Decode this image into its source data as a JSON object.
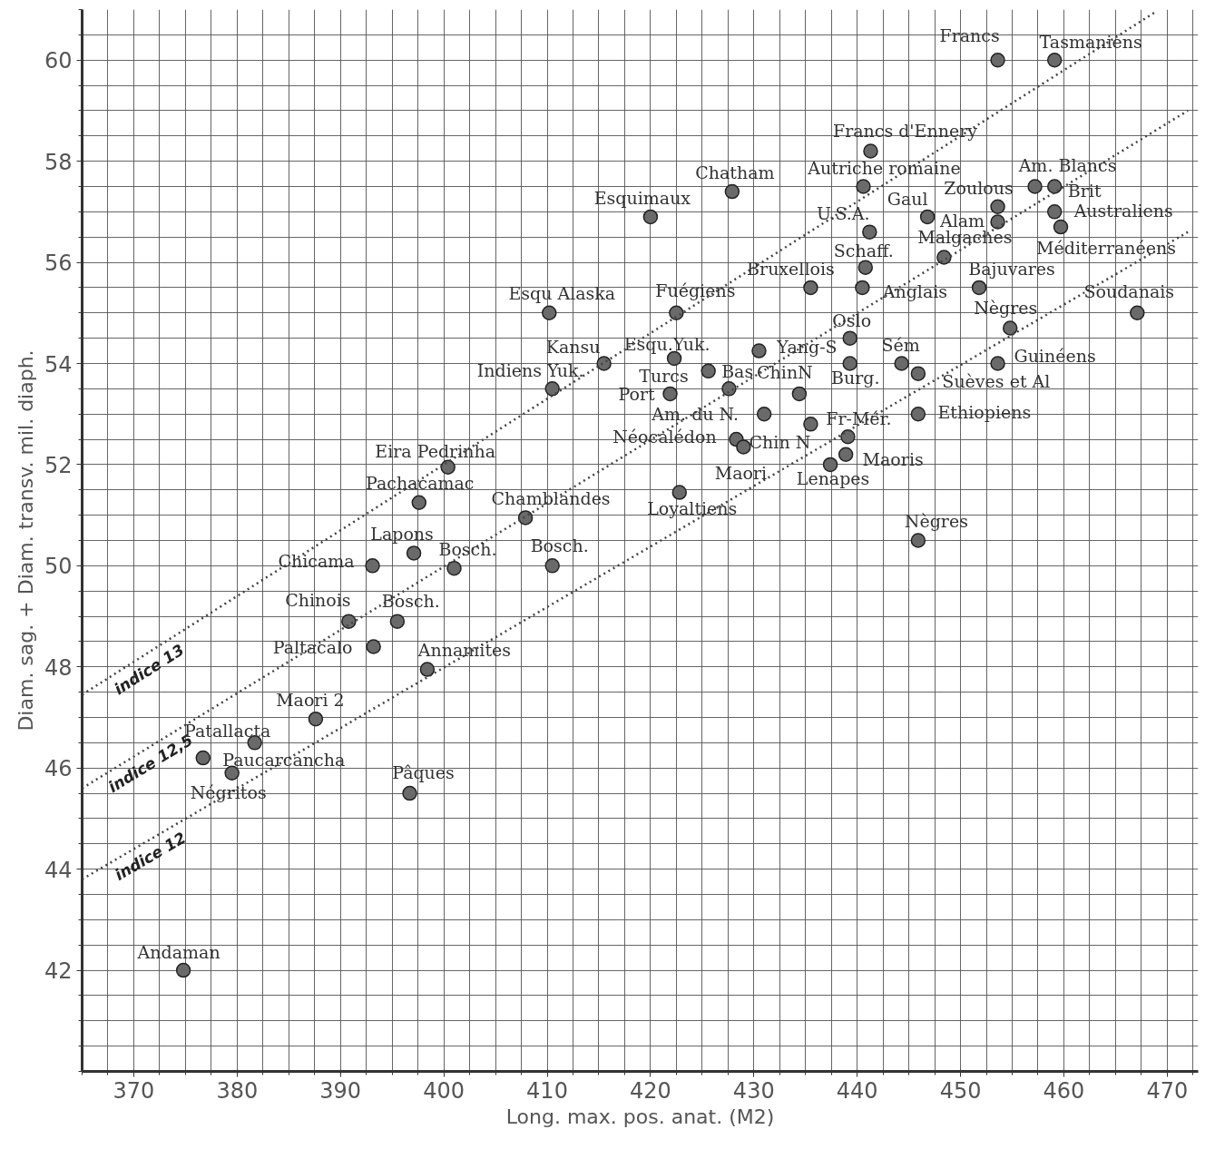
{
  "chart_data": {
    "type": "scatter",
    "xlabel": "Long. max. pos. anat. (M2)",
    "ylabel": "Diam. sag. + Diam. transv. mil. diaph.",
    "xlim": [
      365,
      473
    ],
    "ylim": [
      40,
      61
    ],
    "xticks": [
      370,
      380,
      390,
      400,
      410,
      420,
      430,
      440,
      450,
      460,
      470
    ],
    "yticks": [
      42,
      44,
      46,
      48,
      50,
      52,
      54,
      56,
      58,
      60
    ],
    "grid": true,
    "legend": false,
    "series": [
      {
        "marker": "circle",
        "color": "#6a6a6a",
        "x": [
          453.6,
          459.1,
          441.3,
          427.9,
          440.6,
          420.0,
          457.2,
          459.1,
          453.6,
          459.1,
          453.6,
          446.8,
          441.2,
          459.7,
          448.4,
          440.8,
          435.5,
          440.5,
          451.8,
          410.2,
          422.5,
          467.1,
          454.8,
          439.3,
          430.5,
          415.5,
          422.3,
          444.3,
          439.3,
          453.6,
          425.6,
          445.9,
          410.5,
          421.9,
          427.6,
          434.4,
          431.0,
          445.9,
          439.1,
          428.3,
          435.5,
          429.0,
          438.9,
          437.4,
          400.4,
          397.6,
          422.8,
          407.9,
          445.9,
          397.1,
          393.1,
          401.0,
          410.5,
          390.8,
          395.5,
          393.2,
          398.4,
          387.6,
          381.7,
          376.7,
          379.5,
          396.7,
          374.8
        ],
        "values": [
          60.0,
          60.0,
          58.2,
          57.4,
          57.5,
          56.9,
          57.5,
          57.5,
          57.1,
          57.0,
          56.8,
          56.9,
          56.6,
          56.7,
          56.1,
          55.9,
          55.5,
          55.5,
          55.5,
          55.0,
          55.0,
          55.0,
          54.7,
          54.5,
          54.25,
          54.0,
          54.1,
          54.0,
          54.0,
          54.0,
          53.85,
          53.8,
          53.5,
          53.4,
          53.5,
          53.4,
          53.0,
          53.0,
          52.55,
          52.5,
          52.8,
          52.35,
          52.2,
          52.0,
          51.95,
          51.25,
          51.45,
          50.95,
          50.5,
          50.25,
          50.0,
          49.95,
          50.0,
          48.9,
          48.9,
          48.4,
          47.95,
          46.97,
          46.5,
          46.2,
          45.9,
          45.5,
          42.0
        ]
      },
      {
        "type": "line",
        "name": "indice 13",
        "color": "#444444",
        "line_style": "dotted",
        "x": [
          365,
          469
        ],
        "values": [
          47.45,
          60.97
        ]
      },
      {
        "type": "line",
        "name": "indice 12,5",
        "color": "#444444",
        "line_style": "dotted",
        "x": [
          365,
          472
        ],
        "values": [
          45.6,
          59.0
        ]
      },
      {
        "type": "line",
        "name": "indice 12",
        "color": "#444444",
        "line_style": "dotted",
        "x": [
          365,
          472
        ],
        "values": [
          43.8,
          56.6
        ]
      }
    ],
    "annotations": [
      {
        "text": "Francs",
        "x": 453.6,
        "y": 60.0
      },
      {
        "text": "Tasmaniens",
        "x": 459.1,
        "y": 60.0
      },
      {
        "text": "Francs d'Ennery",
        "x": 441.3,
        "y": 58.2
      },
      {
        "text": "Chatham",
        "x": 427.9,
        "y": 57.4
      },
      {
        "text": "Autriche romaine",
        "x": 440.6,
        "y": 57.5
      },
      {
        "text": "Esquimaux",
        "x": 420.0,
        "y": 56.9
      },
      {
        "text": "Am. Blancs",
        "x": 457.2,
        "y": 57.5
      },
      {
        "text": "Brit",
        "x": 459.1,
        "y": 57.5
      },
      {
        "text": "Zoulous",
        "x": 453.6,
        "y": 57.1
      },
      {
        "text": "Australiens",
        "x": 459.1,
        "y": 57.0
      },
      {
        "text": "Alam",
        "x": 453.6,
        "y": 56.8
      },
      {
        "text": "Gaul",
        "x": 446.8,
        "y": 56.9
      },
      {
        "text": "U.S.A.",
        "x": 441.2,
        "y": 56.6
      },
      {
        "text": "Méditerranéens",
        "x": 459.7,
        "y": 56.7
      },
      {
        "text": "Malgaches",
        "x": 448.4,
        "y": 56.1
      },
      {
        "text": "Schaff.",
        "x": 440.8,
        "y": 55.9
      },
      {
        "text": "Bruxellois",
        "x": 435.5,
        "y": 55.5
      },
      {
        "text": "Anglais",
        "x": 440.5,
        "y": 55.5
      },
      {
        "text": "Bajuvares",
        "x": 451.8,
        "y": 55.5
      },
      {
        "text": "Esqu Alaska",
        "x": 410.2,
        "y": 55.0
      },
      {
        "text": "Fuégiens",
        "x": 422.5,
        "y": 55.0
      },
      {
        "text": "Soudanais",
        "x": 467.1,
        "y": 55.0
      },
      {
        "text": "Nègres",
        "x": 454.8,
        "y": 54.7
      },
      {
        "text": "Oslo",
        "x": 439.3,
        "y": 54.5
      },
      {
        "text": "Yang-S",
        "x": 430.5,
        "y": 54.25
      },
      {
        "text": "Kansu",
        "x": 415.5,
        "y": 54.0
      },
      {
        "text": "Esqu.Yuk.",
        "x": 422.3,
        "y": 54.1
      },
      {
        "text": "Sém",
        "x": 444.3,
        "y": 54.0
      },
      {
        "text": "Burg.",
        "x": 439.3,
        "y": 54.0
      },
      {
        "text": "Guinéens",
        "x": 453.6,
        "y": 54.0
      },
      {
        "text": "Bas",
        "x": 425.6,
        "y": 53.85
      },
      {
        "text": "Suèves et Al",
        "x": 445.9,
        "y": 53.8
      },
      {
        "text": "Indiens Yuk.",
        "x": 410.5,
        "y": 53.5
      },
      {
        "text": "Port",
        "x": 421.9,
        "y": 53.4
      },
      {
        "text": "Turcs",
        "x": 427.6,
        "y": 53.5
      },
      {
        "text": "ChinN",
        "x": 434.4,
        "y": 53.4
      },
      {
        "text": "Am. du N.",
        "x": 431.0,
        "y": 53.0
      },
      {
        "text": "Ethiopiens",
        "x": 445.9,
        "y": 53.0
      },
      {
        "text": "Fr-Mér.",
        "x": 439.1,
        "y": 52.55
      },
      {
        "text": "Néocalédon",
        "x": 428.3,
        "y": 52.5
      },
      {
        "text": "Chin N",
        "x": 435.5,
        "y": 52.8
      },
      {
        "text": "Maori",
        "x": 429.0,
        "y": 52.35
      },
      {
        "text": "Maoris",
        "x": 438.9,
        "y": 52.2
      },
      {
        "text": "Lenapes",
        "x": 437.4,
        "y": 52.0
      },
      {
        "text": "Eira Pedrinha",
        "x": 400.4,
        "y": 51.95
      },
      {
        "text": "Pachacamac",
        "x": 397.6,
        "y": 51.25
      },
      {
        "text": "Loyaltiens",
        "x": 422.8,
        "y": 51.45
      },
      {
        "text": "Chamblandes",
        "x": 407.9,
        "y": 50.95
      },
      {
        "text": "Nègres",
        "x": 445.9,
        "y": 50.5
      },
      {
        "text": "Lapons",
        "x": 397.1,
        "y": 50.25
      },
      {
        "text": "Chicama",
        "x": 393.1,
        "y": 50.0
      },
      {
        "text": "Bosch.",
        "x": 401.0,
        "y": 49.95
      },
      {
        "text": "Bosch.",
        "x": 410.5,
        "y": 50.0
      },
      {
        "text": "Chinois",
        "x": 390.8,
        "y": 48.9
      },
      {
        "text": "Bosch.",
        "x": 395.5,
        "y": 48.9
      },
      {
        "text": "Paltacalo",
        "x": 393.2,
        "y": 48.4
      },
      {
        "text": "Annamites",
        "x": 398.4,
        "y": 47.95
      },
      {
        "text": "Maori 2",
        "x": 387.6,
        "y": 46.97
      },
      {
        "text": "Patallacta",
        "x": 381.7,
        "y": 46.5
      },
      {
        "text": "Paucarcancha",
        "x": 376.7,
        "y": 46.2
      },
      {
        "text": "Négritos",
        "x": 379.5,
        "y": 45.9
      },
      {
        "text": "Pâques",
        "x": 396.7,
        "y": 45.5
      },
      {
        "text": "Andaman",
        "x": 374.8,
        "y": 42.0
      }
    ]
  }
}
